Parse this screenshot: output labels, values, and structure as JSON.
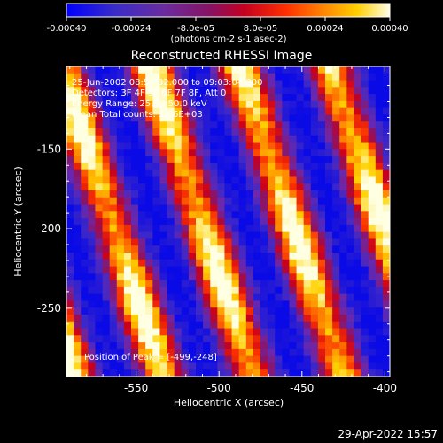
{
  "colorbar": {
    "ticks": [
      "-0.00040",
      "-0.00024",
      "-8.0e-05",
      "8.0e-05",
      "0.00024",
      "0.00040"
    ],
    "unit_label": "(photons cm-2 s-1 asec-2)",
    "range": [
      -0.0004,
      0.0004
    ]
  },
  "chart_data": {
    "type": "heatmap",
    "title": "Reconstructed RHESSI Image",
    "xlabel": "Heliocentric X (arcsec)",
    "ylabel": "Heliocentric Y (arcsec)",
    "xlim": [
      -592,
      -397
    ],
    "ylim": [
      -293,
      -98
    ],
    "x_ticks": [
      "-550",
      "-500",
      "-450",
      "-400"
    ],
    "y_ticks": [
      "-150",
      "-200",
      "-250"
    ],
    "x_tick_values": [
      -550,
      -500,
      -450,
      -400
    ],
    "y_tick_values": [
      -150,
      -200,
      -250
    ],
    "annotations": {
      "time": "25-Jun-2002 08:57:32.000 to 09:03:04.000",
      "detectors": "Detectors: 3F 4F 5F 6F 7F 8F, Att 0",
      "energy": "Energy Range: 25.0 - 50.0 keV",
      "clean": "Clean    Total counts: 3.86E+03",
      "peak": "Position of Peak = [-499,-248]"
    },
    "peak_position": [
      -499,
      -248
    ],
    "colormap": "rainbow-thermal (blue-purple-red-orange-yellow-white)"
  },
  "footer": {
    "timestamp": "29-Apr-2022 15:57"
  }
}
